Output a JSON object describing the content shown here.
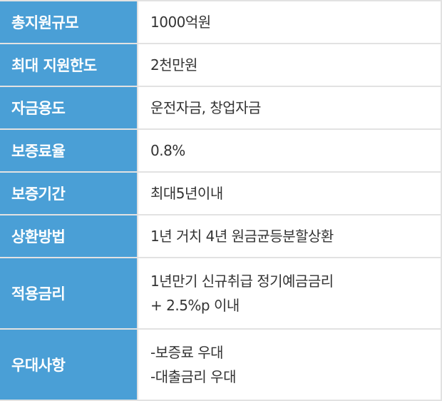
{
  "rows": [
    {
      "label": "총지원규모",
      "lines": [
        "1000억원"
      ]
    },
    {
      "label": "최대 지원한도",
      "lines": [
        "2천만원"
      ]
    },
    {
      "label": "자금용도",
      "lines": [
        "운전자금, 창업자금"
      ]
    },
    {
      "label": "보증료율",
      "lines": [
        "0.8%"
      ]
    },
    {
      "label": "보증기간",
      "lines": [
        "최대5년이내"
      ]
    },
    {
      "label": "상환방법",
      "lines": [
        "1년 거치 4년 원금균등분할상환"
      ]
    },
    {
      "label": "적용금리",
      "lines": [
        "1년만기 신규취급 정기예금금리",
        "+ 2.5%p 이내"
      ]
    },
    {
      "label": "우대사항",
      "lines": [
        "-보증료 우대",
        "-대출금리 우대"
      ]
    }
  ]
}
